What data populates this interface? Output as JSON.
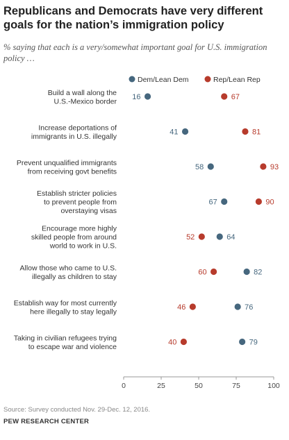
{
  "header": {
    "title": "Republicans and Democrats have very different goals for the nation’s immigration policy",
    "subtitle": "% saying that each is a very/somewhat important goal for U.S. immigration policy …"
  },
  "footer": {
    "source": "Source: Survey conducted Nov. 29-Dec. 12, 2016.",
    "org": "PEW RESEARCH CENTER"
  },
  "colors": {
    "dem": "#46677e",
    "rep": "#b73b2c"
  },
  "chart_data": {
    "type": "dot",
    "xlim": [
      0,
      100
    ],
    "xticks": [
      0,
      25,
      50,
      75,
      100
    ],
    "legend_position": "top",
    "series": [
      {
        "name": "Dem/Lean Dem",
        "key": "dem"
      },
      {
        "name": "Rep/Lean Rep",
        "key": "rep"
      }
    ],
    "categories": [
      {
        "label": [
          "Build a wall along the",
          "U.S.-Mexico border"
        ],
        "dem": 16,
        "rep": 67
      },
      {
        "label": [
          "Increase deportations of",
          "immigrants in U.S. illegally"
        ],
        "dem": 41,
        "rep": 81
      },
      {
        "label": [
          "Prevent unqualified immigrants",
          "from receiving govt benefits"
        ],
        "dem": 58,
        "rep": 93
      },
      {
        "label": [
          "Establish stricter policies",
          "to prevent people from",
          "overstaying visas"
        ],
        "dem": 67,
        "rep": 90
      },
      {
        "label": [
          "Encourage more highly",
          "skilled people from around",
          "world to work in U.S."
        ],
        "dem": 64,
        "rep": 52
      },
      {
        "label": [
          "Allow those who came to U.S.",
          "illegally as children to stay"
        ],
        "dem": 82,
        "rep": 60
      },
      {
        "label": [
          "Establish way for most currently",
          "here illegally to stay legally"
        ],
        "dem": 76,
        "rep": 46
      },
      {
        "label": [
          "Taking in civilian refugees trying",
          "to escape war and violence"
        ],
        "dem": 79,
        "rep": 40
      }
    ]
  }
}
